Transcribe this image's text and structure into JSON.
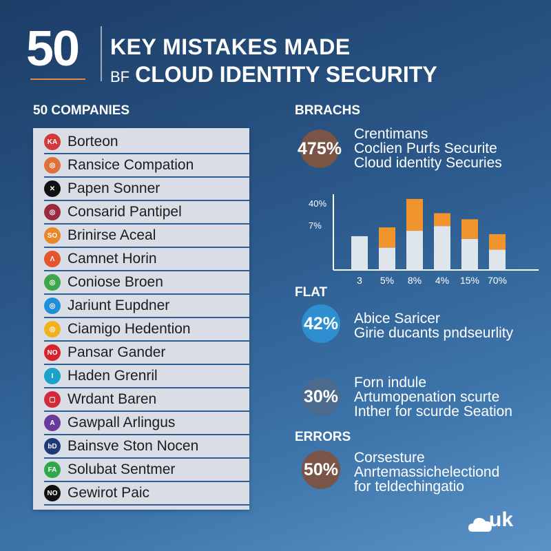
{
  "header": {
    "number": "50",
    "title_line1": "KEY MISTAKES MADE",
    "title_line2_prefix": "BF",
    "title_line2": "CLOUD IDENTITY SECURITY"
  },
  "companies": {
    "heading": "50 COMPANIES",
    "items": [
      {
        "name": "Borteon",
        "badge": "KA",
        "color": "#d23a3a"
      },
      {
        "name": "Ransice Compation",
        "badge": "◎",
        "color": "#e0703a"
      },
      {
        "name": "Papen Sonner",
        "badge": "✕",
        "color": "#111111"
      },
      {
        "name": "Consarid Pantipel",
        "badge": "◎",
        "color": "#9a2a3e"
      },
      {
        "name": "Brinirse Aceal",
        "badge": "SO",
        "color": "#e8862a"
      },
      {
        "name": "Camnet Horin",
        "badge": "Λ",
        "color": "#e5552c"
      },
      {
        "name": "Coniose Broen",
        "badge": "◎",
        "color": "#3ea54a"
      },
      {
        "name": "Jariunt Eupdner",
        "badge": "◎",
        "color": "#1e8fd8"
      },
      {
        "name": "Ciamigo Hedention",
        "badge": "◎",
        "color": "#f0b21e"
      },
      {
        "name": "Pansar Gander",
        "badge": "NO",
        "color": "#d8222e"
      },
      {
        "name": "Haden Grenril",
        "badge": "I",
        "color": "#1aa3c8"
      },
      {
        "name": "Wrdant Baren",
        "badge": "▢",
        "color": "#d22a3a"
      },
      {
        "name": "Gawpall Arlingus",
        "badge": "A",
        "color": "#6a3a9a"
      },
      {
        "name": "Bainsve Ston Nocen",
        "badge": "bD",
        "color": "#1f3a78"
      },
      {
        "name": "Solubat Sentmer",
        "badge": "FA",
        "color": "#2fa84a"
      },
      {
        "name": "Gewirot Paic",
        "badge": "NO",
        "color": "#111111"
      }
    ]
  },
  "breaches": {
    "heading": "BRRACHS",
    "percent": "475%",
    "circle_color": "#7a5546",
    "lines": [
      "Crentimans",
      "Coclien Purfs Securite",
      "Cloud identity Securies"
    ]
  },
  "chart_data": {
    "type": "bar",
    "stacked": true,
    "categories": [
      "3",
      "5%",
      "8%",
      "4%",
      "15%",
      "70%"
    ],
    "y_tick_labels": [
      "40%",
      "7%"
    ],
    "series": [
      {
        "values": [
          50,
          33,
          58,
          65,
          46,
          30
        ],
        "color": "#dfe5ec"
      },
      {
        "values": [
          0,
          30,
          47,
          19,
          29,
          23
        ],
        "color": "#f0952e"
      }
    ],
    "ylim": [
      0,
      110
    ]
  },
  "flat": {
    "heading": "FLAT",
    "percent": "42%",
    "circle_color": "#2e8ed0",
    "lines": [
      "Abice Saricer",
      "Girie ducants  pndseurlity"
    ]
  },
  "middle_stat": {
    "percent": "30%",
    "circle_color": "#4a6a8e",
    "lines": [
      "Forn indule",
      "Artumopenation scurte",
      "Inther for scurde Seation"
    ]
  },
  "errors": {
    "heading": "ERRORS",
    "percent": "50%",
    "circle_color": "#7a5546",
    "lines": [
      "Corsesture",
      "Anrtemassichelectiond",
      "for teldechingatio"
    ]
  },
  "brand": {
    "logo_text": "uk",
    "icon": "cloud-icon"
  }
}
